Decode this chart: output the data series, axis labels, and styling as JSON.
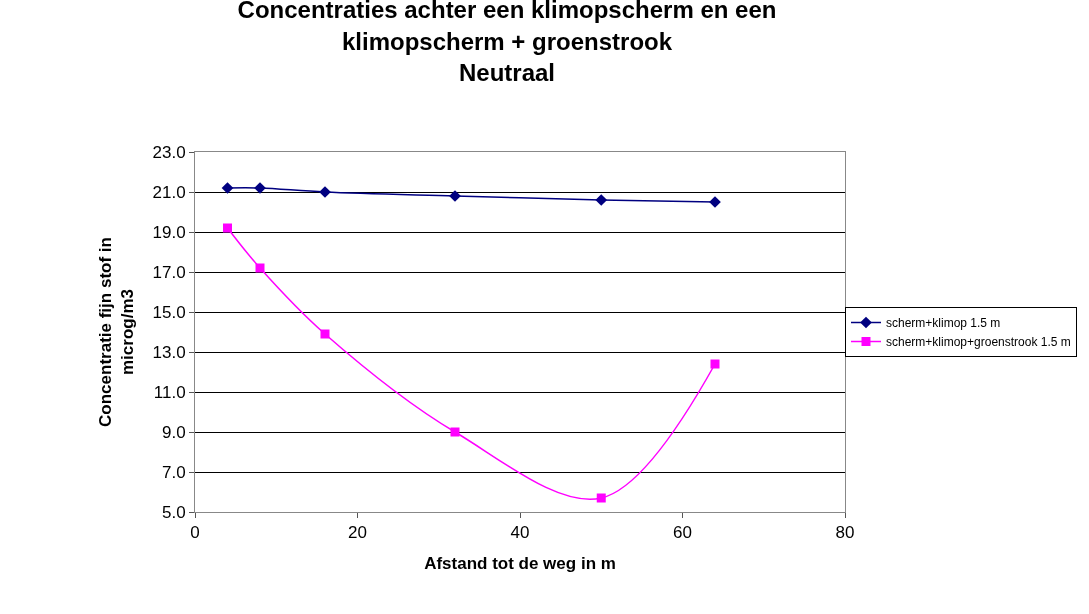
{
  "chart_data": {
    "type": "line",
    "title": "Concentraties achter een klimopscherm en een\nklimopscherm + groenstrook\nNeutraal",
    "xlabel": "Afstand tot de weg in m",
    "ylabel": "Concentratie fijn stof in\nmicrog/m3",
    "x": [
      4,
      8,
      16,
      32,
      50,
      64
    ],
    "series": [
      {
        "name": "scherm+klimop 1.5 m",
        "color": "#000080",
        "marker": "diamond",
        "values": [
          21.2,
          21.2,
          21.0,
          20.8,
          20.6,
          20.5
        ]
      },
      {
        "name": "scherm+klimop+groenstrook 1.5 m",
        "color": "#ff00ff",
        "marker": "square",
        "values": [
          19.2,
          17.2,
          13.9,
          9.0,
          5.7,
          12.4
        ]
      }
    ],
    "xlim": [
      0,
      80
    ],
    "xticks": [
      0,
      20,
      40,
      60,
      80
    ],
    "ylim": [
      5,
      23
    ],
    "yticks": [
      {
        "value": 5,
        "label": "5.0"
      },
      {
        "value": 7,
        "label": "7.0"
      },
      {
        "value": 9,
        "label": "9.0"
      },
      {
        "value": 11,
        "label": "11.0"
      },
      {
        "value": 13,
        "label": "13.0"
      },
      {
        "value": 15,
        "label": "15.0"
      },
      {
        "value": 17,
        "label": "17.0"
      },
      {
        "value": 19,
        "label": "19.0"
      },
      {
        "value": 21,
        "label": "21.0"
      },
      {
        "value": 23,
        "label": "23.0"
      }
    ],
    "grid": "y",
    "legend": "right",
    "line_style": "solid"
  }
}
